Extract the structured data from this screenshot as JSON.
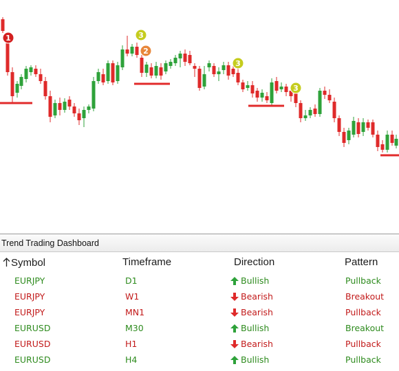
{
  "colors": {
    "bull": "#2ea23a",
    "bear": "#df2a2a",
    "level": "#e12a2a",
    "marker_1": "#d32020",
    "marker_2": "#e8873a",
    "marker_3": "#c5cc1e",
    "green_text": "#2e8b1e",
    "red_text": "#c21a1a"
  },
  "markers": [
    {
      "id": "marker-1",
      "label": "1",
      "color": "marker_1"
    },
    {
      "id": "marker-3a",
      "label": "3",
      "color": "marker_3"
    },
    {
      "id": "marker-2",
      "label": "2",
      "color": "marker_2"
    },
    {
      "id": "marker-3b",
      "label": "3",
      "color": "marker_3"
    },
    {
      "id": "marker-3c",
      "label": "3",
      "color": "marker_3"
    }
  ],
  "dashboard": {
    "title": "Trend Trading Dashboard",
    "columns": {
      "symbol": "Symbol",
      "timeframe": "Timeframe",
      "direction": "Direction",
      "pattern": "Pattern"
    },
    "sort_icon": "arrow-up-icon",
    "rows": [
      {
        "symbol": "EURJPY",
        "timeframe": "D1",
        "direction": "Bullish",
        "dir": "up",
        "pattern": "Pullback",
        "tone": "green",
        "pattern_tone": "green"
      },
      {
        "symbol": "EURJPY",
        "timeframe": "W1",
        "direction": "Bearish",
        "dir": "down",
        "pattern": "Breakout",
        "tone": "red",
        "pattern_tone": "red"
      },
      {
        "symbol": "EURJPY",
        "timeframe": "MN1",
        "direction": "Bearish",
        "dir": "down",
        "pattern": "Pullback",
        "tone": "red",
        "pattern_tone": "red"
      },
      {
        "symbol": "EURUSD",
        "timeframe": "M30",
        "direction": "Bullish",
        "dir": "up",
        "pattern": "Breakout",
        "tone": "green",
        "pattern_tone": "green"
      },
      {
        "symbol": "EURUSD",
        "timeframe": "H1",
        "direction": "Bearish",
        "dir": "down",
        "pattern": "Pullback",
        "tone": "red",
        "pattern_tone": "red"
      },
      {
        "symbol": "EURUSD",
        "timeframe": "H4",
        "direction": "Bullish",
        "dir": "up",
        "pattern": "Pullback",
        "tone": "green",
        "pattern_tone": "green"
      }
    ]
  }
}
